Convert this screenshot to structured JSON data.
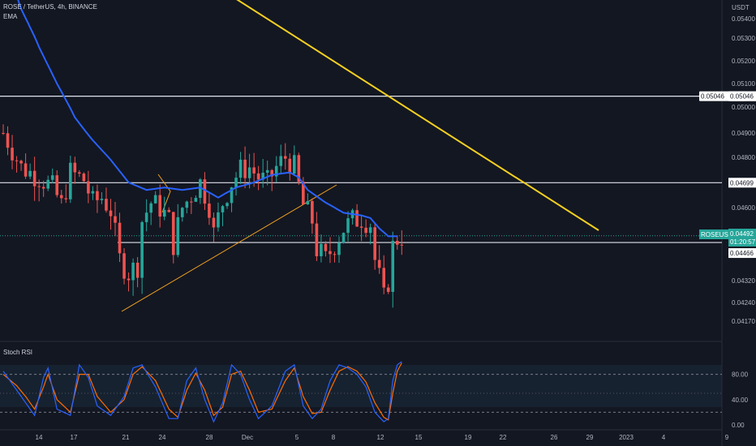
{
  "header": {
    "symbol_line": "ROSE / TetherUS, 4h, BINANCE",
    "indicator": "EMA"
  },
  "price_axis": {
    "unit_label": "USDT",
    "ticks": [
      "0.05400",
      "0.05300",
      "0.05200",
      "0.05100",
      "0.05000",
      "0.04900",
      "0.04800",
      "0.04600",
      "0.04320",
      "0.04240",
      "0.04170"
    ],
    "markers": [
      {
        "text": "0.05046",
        "style": "white"
      },
      {
        "text": "0.04699",
        "style": "white"
      },
      {
        "text": "ROSEUSDT",
        "style": "green"
      },
      {
        "text": "0.04492",
        "style": "green"
      },
      {
        "text": "01:20:57",
        "style": "green"
      },
      {
        "text": "0.04466",
        "style": "white"
      }
    ]
  },
  "stoch_panel": {
    "title": "Stoch RSI",
    "ticks": [
      "80.00",
      "40.00",
      "0.00"
    ]
  },
  "time_axis": {
    "ticks": [
      "14",
      "17",
      "21",
      "24",
      "28",
      "Dec",
      "5",
      "8",
      "12",
      "15",
      "19",
      "22",
      "26",
      "29",
      "2023",
      "4",
      "9"
    ]
  },
  "colors": {
    "background": "#131722",
    "up": "#26a69a",
    "down": "#ef5350",
    "ema": "#2962ff",
    "trendline": "#f5d020",
    "support": "#f5d020",
    "stoch_k": "#2962ff",
    "stoch_d": "#ff6d00",
    "hline": "#d1d4dc",
    "current_price": "#26a69a"
  },
  "chart_data": {
    "type": "candlestick",
    "symbol": "ROSE / TetherUS, 4h, BINANCE",
    "ylim": [
      0.0414,
      0.055
    ],
    "horizontal_levels": [
      0.05046,
      0.04699,
      0.04466
    ],
    "current_price": 0.04492,
    "trendlines": [
      {
        "name": "descending",
        "points": [
          [
            0,
            0.0552
          ],
          [
            126,
            0.0437
          ]
        ]
      },
      {
        "name": "ascending",
        "points": [
          [
            27,
            0.0422
          ],
          [
            73,
            0.0468
          ]
        ]
      }
    ],
    "close_path": [
      [
        0,
        0.049
      ],
      [
        4,
        0.0476
      ],
      [
        8,
        0.0472
      ],
      [
        11,
        0.0468
      ],
      [
        13,
        0.0461
      ],
      [
        15,
        0.0474
      ],
      [
        18,
        0.0471
      ],
      [
        20,
        0.0462
      ],
      [
        22,
        0.0464
      ],
      [
        24,
        0.0459
      ],
      [
        26,
        0.044
      ],
      [
        28,
        0.0435
      ],
      [
        30,
        0.0438
      ],
      [
        31,
        0.0455
      ],
      [
        33,
        0.0462
      ],
      [
        35,
        0.046
      ],
      [
        37,
        0.0455
      ],
      [
        38,
        0.0446
      ],
      [
        40,
        0.046
      ],
      [
        42,
        0.0465
      ],
      [
        44,
        0.047
      ],
      [
        46,
        0.0461
      ],
      [
        47,
        0.045
      ],
      [
        49,
        0.0462
      ],
      [
        51,
        0.047
      ],
      [
        53,
        0.0475
      ],
      [
        55,
        0.0476
      ],
      [
        57,
        0.0472
      ],
      [
        59,
        0.047
      ],
      [
        61,
        0.0476
      ],
      [
        63,
        0.048
      ],
      [
        65,
        0.0476
      ],
      [
        67,
        0.0461
      ],
      [
        69,
        0.0455
      ],
      [
        70,
        0.0444
      ],
      [
        72,
        0.044
      ],
      [
        74,
        0.0446
      ],
      [
        76,
        0.0452
      ],
      [
        78,
        0.0455
      ],
      [
        80,
        0.0456
      ],
      [
        82,
        0.0454
      ],
      [
        83,
        0.044
      ],
      [
        84,
        0.0433
      ],
      [
        85,
        0.0425
      ],
      [
        86,
        0.0432
      ],
      [
        87,
        0.0445
      ],
      [
        88,
        0.0448
      ],
      [
        89,
        0.0449
      ]
    ],
    "ema_path": [
      [
        0,
        0.0572
      ],
      [
        4,
        0.0545
      ],
      [
        8,
        0.0526
      ],
      [
        12,
        0.051
      ],
      [
        16,
        0.0496
      ],
      [
        20,
        0.0487
      ],
      [
        24,
        0.0479
      ],
      [
        28,
        0.047
      ],
      [
        32,
        0.0467
      ],
      [
        36,
        0.0468
      ],
      [
        40,
        0.0467
      ],
      [
        44,
        0.0468
      ],
      [
        48,
        0.0464
      ],
      [
        52,
        0.0468
      ],
      [
        56,
        0.047
      ],
      [
        60,
        0.0473
      ],
      [
        64,
        0.0474
      ],
      [
        66,
        0.0472
      ],
      [
        68,
        0.0467
      ],
      [
        72,
        0.0462
      ],
      [
        76,
        0.0458
      ],
      [
        80,
        0.0457
      ],
      [
        82,
        0.0456
      ],
      [
        84,
        0.0452
      ],
      [
        86,
        0.0449
      ],
      [
        88,
        0.0449
      ]
    ],
    "stoch_rsi": {
      "ylim": [
        0,
        100
      ],
      "levels": [
        80,
        20
      ],
      "k": [
        [
          0,
          85
        ],
        [
          3,
          55
        ],
        [
          5,
          35
        ],
        [
          7,
          15
        ],
        [
          9,
          75
        ],
        [
          10,
          90
        ],
        [
          12,
          25
        ],
        [
          15,
          15
        ],
        [
          17,
          95
        ],
        [
          19,
          75
        ],
        [
          21,
          30
        ],
        [
          24,
          15
        ],
        [
          27,
          45
        ],
        [
          29,
          90
        ],
        [
          31,
          95
        ],
        [
          34,
          60
        ],
        [
          37,
          10
        ],
        [
          39,
          10
        ],
        [
          41,
          70
        ],
        [
          43,
          90
        ],
        [
          45,
          40
        ],
        [
          47,
          5
        ],
        [
          49,
          35
        ],
        [
          51,
          95
        ],
        [
          53,
          80
        ],
        [
          55,
          40
        ],
        [
          57,
          10
        ],
        [
          60,
          30
        ],
        [
          63,
          85
        ],
        [
          65,
          95
        ],
        [
          67,
          30
        ],
        [
          69,
          10
        ],
        [
          71,
          25
        ],
        [
          73,
          70
        ],
        [
          75,
          95
        ],
        [
          77,
          90
        ],
        [
          79,
          80
        ],
        [
          81,
          60
        ],
        [
          83,
          20
        ],
        [
          85,
          5
        ],
        [
          86,
          10
        ],
        [
          87,
          70
        ],
        [
          88,
          95
        ],
        [
          89,
          100
        ]
      ],
      "d": [
        [
          0,
          80
        ],
        [
          3,
          62
        ],
        [
          5,
          45
        ],
        [
          7,
          25
        ],
        [
          9,
          60
        ],
        [
          10,
          80
        ],
        [
          12,
          40
        ],
        [
          15,
          20
        ],
        [
          17,
          80
        ],
        [
          19,
          80
        ],
        [
          21,
          45
        ],
        [
          24,
          20
        ],
        [
          27,
          40
        ],
        [
          29,
          80
        ],
        [
          31,
          92
        ],
        [
          34,
          70
        ],
        [
          37,
          25
        ],
        [
          39,
          12
        ],
        [
          41,
          55
        ],
        [
          43,
          82
        ],
        [
          45,
          55
        ],
        [
          47,
          15
        ],
        [
          49,
          28
        ],
        [
          51,
          80
        ],
        [
          53,
          85
        ],
        [
          55,
          55
        ],
        [
          57,
          20
        ],
        [
          60,
          25
        ],
        [
          63,
          70
        ],
        [
          65,
          90
        ],
        [
          67,
          45
        ],
        [
          69,
          18
        ],
        [
          71,
          20
        ],
        [
          73,
          55
        ],
        [
          75,
          85
        ],
        [
          77,
          92
        ],
        [
          79,
          85
        ],
        [
          81,
          68
        ],
        [
          83,
          35
        ],
        [
          85,
          12
        ],
        [
          86,
          8
        ],
        [
          87,
          50
        ],
        [
          88,
          85
        ],
        [
          89,
          98
        ]
      ]
    }
  }
}
